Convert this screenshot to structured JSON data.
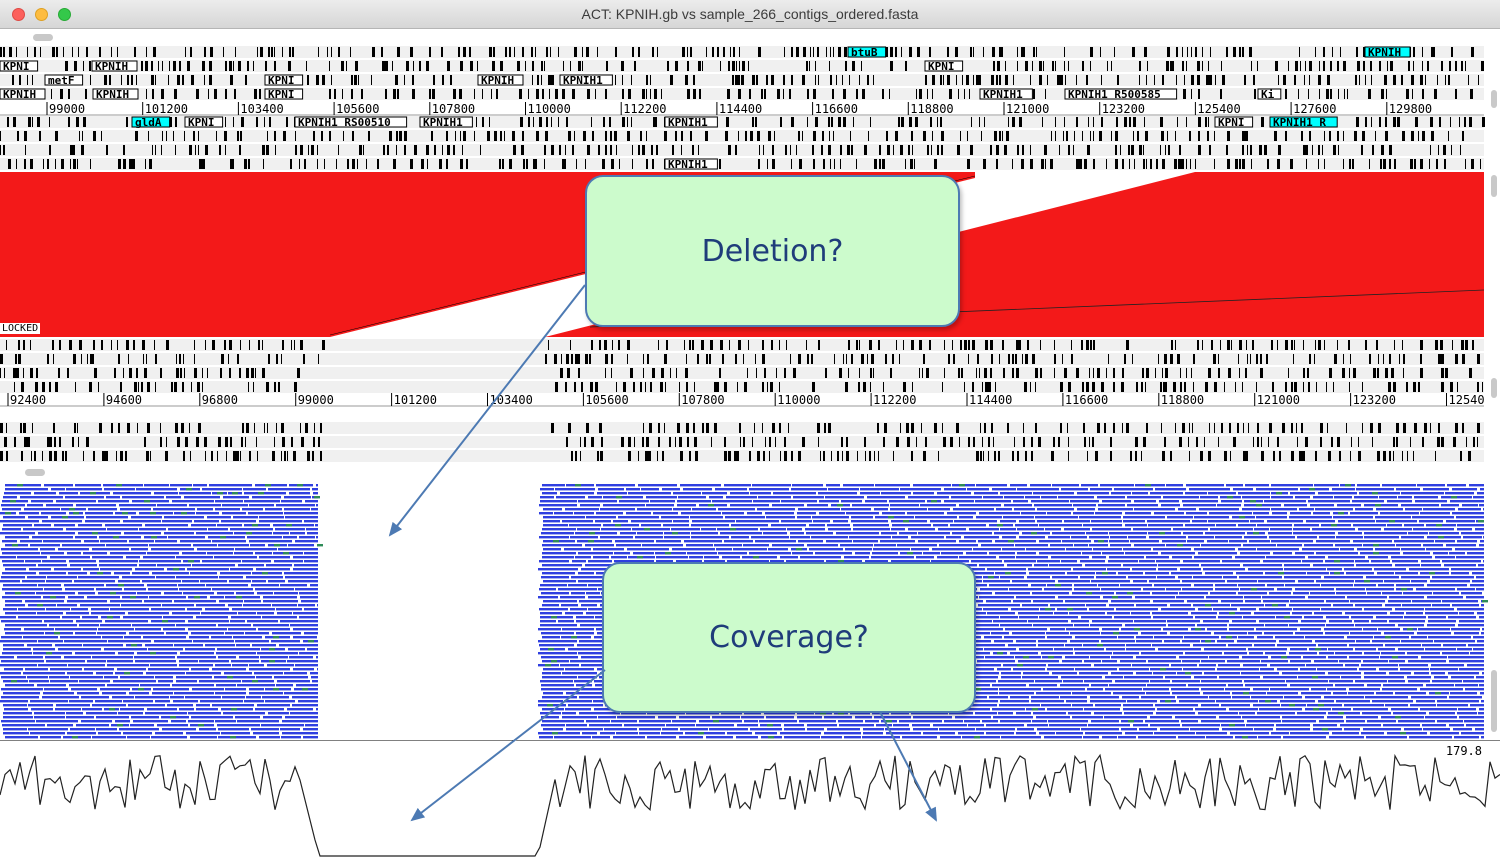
{
  "window": {
    "title": "ACT: KPNIH.gb vs sample_266_contigs_ordered.fasta"
  },
  "upper_sequence": {
    "ruler_ticks": [
      "99000",
      "101200",
      "103400",
      "105600",
      "107800",
      "110000",
      "112200",
      "114400",
      "116600",
      "118800",
      "121000",
      "123200",
      "125400",
      "127600",
      "129800"
    ],
    "feature_labels": [
      "KPNI",
      "KPNIH",
      "metF",
      "KPNIH",
      "KPNI",
      "KPNIH",
      "KPNI",
      "KPNIH1",
      "KPNIH",
      "btuB",
      "KPNI",
      "KPNIH1",
      "KPNIH1 R",
      "KPNIH1 R500585",
      "Ki",
      "gldA",
      "KPNI",
      "KPNIH1 RS00510",
      "KPNIH1",
      "KPNIH1",
      "KPNIH1 R",
      "KPNIH",
      "KPNI",
      "KPNIH1"
    ]
  },
  "comparison_label": "LOCKED",
  "lower_sequence": {
    "ruler_ticks": [
      "92400",
      "94600",
      "96800",
      "99000",
      "101200",
      "103400",
      "105600",
      "107800",
      "110000",
      "112200",
      "114400",
      "116600",
      "118800",
      "121000",
      "123200",
      "12540"
    ]
  },
  "coverage_max": "179.8",
  "callouts": {
    "deletion": "Deletion?",
    "coverage": "Coverage?"
  },
  "colors": {
    "match_red": "#f31919",
    "feature_cyan": "#00ffff",
    "reads_blue": "#2f3fe0",
    "reads_green": "#2e8b57",
    "callout_fill": "#ccfbcc",
    "arrow": "#4d7ab3"
  }
}
